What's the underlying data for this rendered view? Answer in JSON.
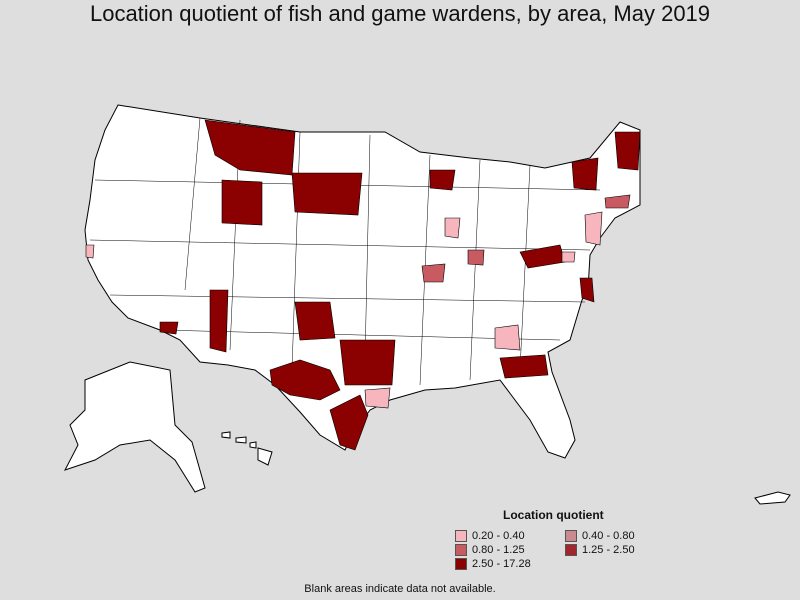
{
  "title": "Location quotient of fish and game wardens, by area, May 2019",
  "legend": {
    "title": "Location quotient",
    "items": [
      {
        "label": "0.20 - 0.40",
        "color": "#f7b6bd"
      },
      {
        "label": "0.40 - 0.80",
        "color": "#c98a90"
      },
      {
        "label": "0.80 - 1.25",
        "color": "#c85a62"
      },
      {
        "label": "1.25 - 2.50",
        "color": "#a3262c"
      },
      {
        "label": "2.50 - 17.28",
        "color": "#8b0000"
      }
    ]
  },
  "footnote": "Blank areas indicate data not available.",
  "colors": {
    "background": "#dedede",
    "land": "#ffffff",
    "border": "#000000"
  },
  "regions": [
    {
      "name": "montana",
      "class": "2.50 - 17.28"
    },
    {
      "name": "wyoming",
      "class": "2.50 - 17.28"
    },
    {
      "name": "south-dakota",
      "class": "2.50 - 17.28"
    },
    {
      "name": "arizona-east",
      "class": "2.50 - 17.28"
    },
    {
      "name": "arizona-southwest",
      "class": "2.50 - 17.28"
    },
    {
      "name": "texas-central",
      "class": "2.50 - 17.28"
    },
    {
      "name": "texas-east",
      "class": "2.50 - 17.28"
    },
    {
      "name": "texas-gulf",
      "class": "2.50 - 17.28"
    },
    {
      "name": "oklahoma-east",
      "class": "2.50 - 17.28"
    },
    {
      "name": "wisconsin-north",
      "class": "2.50 - 17.28"
    },
    {
      "name": "new-york-north",
      "class": "2.50 - 17.28"
    },
    {
      "name": "maine-west",
      "class": "2.50 - 17.28"
    },
    {
      "name": "west-virginia",
      "class": "2.50 - 17.28"
    },
    {
      "name": "maryland-east",
      "class": "2.50 - 17.28"
    },
    {
      "name": "georgia-coast",
      "class": "2.50 - 17.28"
    },
    {
      "name": "illinois-south",
      "class": "0.80 - 1.25"
    },
    {
      "name": "indiana-central",
      "class": "0.80 - 1.25"
    },
    {
      "name": "connecticut",
      "class": "0.80 - 1.25"
    },
    {
      "name": "illinois-north",
      "class": "0.20 - 0.40"
    },
    {
      "name": "georgia-north",
      "class": "0.20 - 0.40"
    },
    {
      "name": "texas-houston",
      "class": "0.20 - 0.40"
    },
    {
      "name": "new-jersey",
      "class": "0.20 - 0.40"
    },
    {
      "name": "virginia-north",
      "class": "0.20 - 0.40"
    },
    {
      "name": "california-bay",
      "class": "0.20 - 0.40"
    }
  ]
}
